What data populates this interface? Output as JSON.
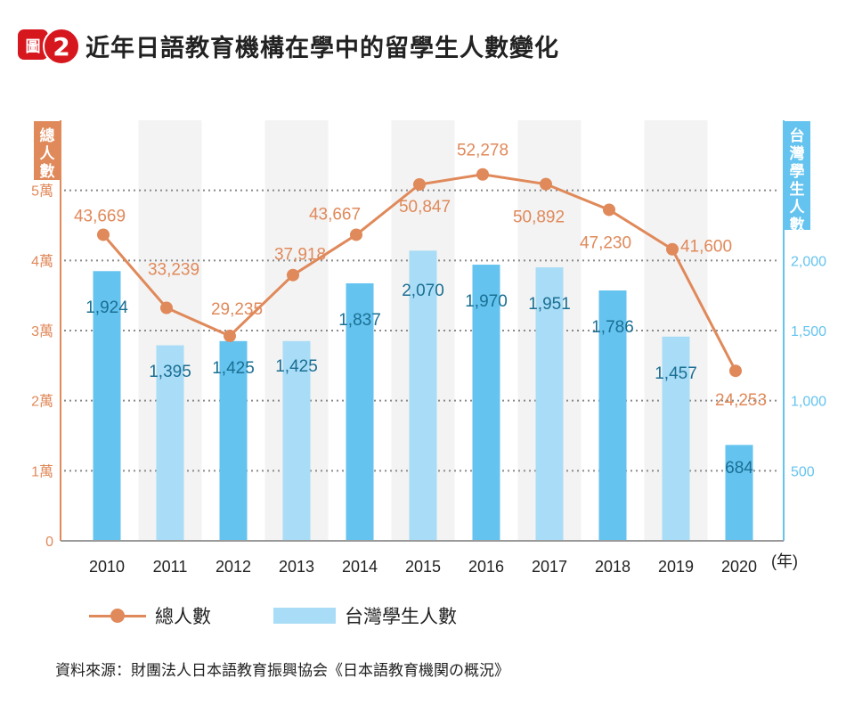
{
  "header": {
    "badge_char": "圖",
    "badge_num": "2",
    "title": "近年日語教育機構在學中的留學生人數變化"
  },
  "chart_data": {
    "type": "bar+line",
    "categories": [
      "2010",
      "2011",
      "2012",
      "2013",
      "2014",
      "2015",
      "2016",
      "2017",
      "2018",
      "2019",
      "2020"
    ],
    "x_unit": "(年)",
    "series": [
      {
        "name": "總人數",
        "kind": "line",
        "axis": "left",
        "values": [
          43669,
          33239,
          29235,
          37918,
          43667,
          50847,
          52278,
          50892,
          47230,
          41600,
          24253
        ],
        "labels": [
          "43,669",
          "33,239",
          "29,235",
          "37,918",
          "43,667",
          "50,847",
          "52,278",
          "50,892",
          "47,230",
          "41,600",
          "24,253"
        ],
        "color": "#e0895a"
      },
      {
        "name": "台灣學生人數",
        "kind": "bar",
        "axis": "right",
        "values": [
          1924,
          1395,
          1425,
          1425,
          1837,
          2070,
          1970,
          1951,
          1786,
          1457,
          684
        ],
        "labels": [
          "1,924",
          "1,395",
          "1,425",
          "1,425",
          "1,837",
          "2,070",
          "1,970",
          "1,951",
          "1,786",
          "1,457",
          "684"
        ],
        "color_dark": "#64c3ef",
        "color_light": "#a9dcf6"
      }
    ],
    "left_axis": {
      "label": "總人數",
      "ylim": [
        0,
        60000
      ],
      "ticks": [
        {
          "value": 0,
          "label": "0"
        },
        {
          "value": 10000,
          "label": "1萬"
        },
        {
          "value": 20000,
          "label": "2萬"
        },
        {
          "value": 30000,
          "label": "3萬"
        },
        {
          "value": 40000,
          "label": "4萬"
        },
        {
          "value": 50000,
          "label": "5萬"
        }
      ],
      "color": "#e0895a"
    },
    "right_axis": {
      "label": "台灣學生人數",
      "ylim": [
        0,
        3000
      ],
      "ticks": [
        {
          "value": 500,
          "label": "500"
        },
        {
          "value": 1000,
          "label": "1,000"
        },
        {
          "value": 1500,
          "label": "1,500"
        },
        {
          "value": 2000,
          "label": "2,000"
        }
      ],
      "color": "#64c3ef"
    },
    "grid": true,
    "legend": "bottom"
  },
  "legend": {
    "line_label": "總人數",
    "bar_label": "台灣學生人數"
  },
  "source": "資料來源：財團法人日本語教育振興協会《日本語教育機関の概況》"
}
